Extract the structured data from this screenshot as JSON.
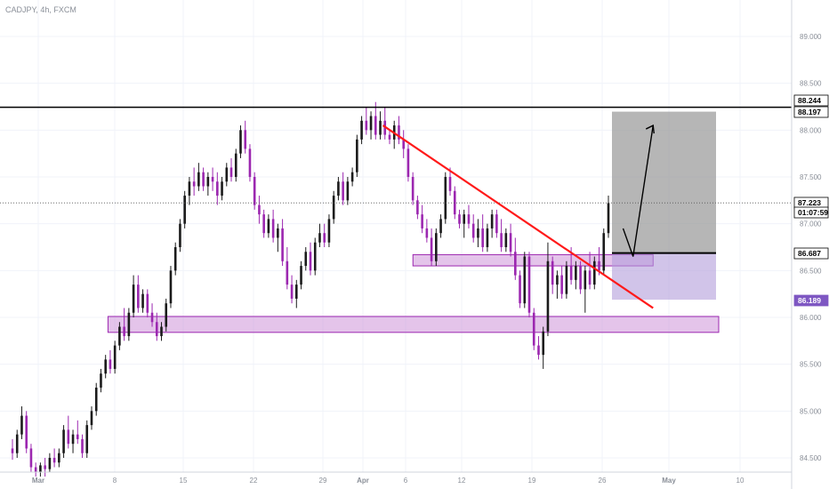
{
  "header": {
    "title": "CADJPY, 4h, FXCM"
  },
  "colors": {
    "bull": "#1b1b1b",
    "bear": "#9c27b0",
    "zone_fill": "#ce93d8",
    "zone_stroke": "#9c27b0",
    "trendline": "#ff1a1a",
    "target_fill": "#9e9e9e",
    "stop_fill": "#b39ddb",
    "level_line": "#000000",
    "current_price_tag": "#000000",
    "stop_tag": "#7e57c2"
  },
  "chart_data": {
    "type": "candlestick",
    "title": "CADJPY, 4h, FXCM",
    "x_tick_labels": [
      "Mar",
      "8",
      "15",
      "22",
      "29",
      "Apr",
      "6",
      "12",
      "19",
      "26",
      "May",
      "10"
    ],
    "y_tick_labels": [
      "84.500",
      "85.000",
      "85.500",
      "86.000",
      "86.500",
      "87.000",
      "87.500",
      "88.000",
      "88.500",
      "89.000"
    ],
    "ylim": [
      84.4,
      89.5
    ],
    "price_tags": [
      {
        "label": "88.244",
        "price": 88.244,
        "style": "outline"
      },
      {
        "label": "88.197",
        "price": 88.197,
        "style": "dark"
      },
      {
        "label": "87.223",
        "price": 87.223,
        "style": "dark"
      },
      {
        "label": "01:07:59",
        "price": 87.1,
        "style": "dark"
      },
      {
        "label": "86.687",
        "price": 86.687,
        "style": "outline"
      },
      {
        "label": "86.189",
        "price": 86.189,
        "style": "purple"
      }
    ],
    "horizontal_lines": [
      {
        "name": "resistance",
        "price": 88.244
      },
      {
        "name": "current-price",
        "price": 87.223,
        "style": "dotted"
      }
    ],
    "zones": [
      {
        "name": "support-zone-upper",
        "x_start": "Apr 6",
        "x_end": "Apr 30",
        "price_low": 86.55,
        "price_high": 86.67
      },
      {
        "name": "support-zone-lower",
        "x_start": "Mar 8",
        "x_end": "May 6",
        "price_low": 85.84,
        "price_high": 86.01
      }
    ],
    "trendline": {
      "from": {
        "x": "Apr 3",
        "price": 88.05
      },
      "to": {
        "x": "Apr 30",
        "price": 86.1
      }
    },
    "position": {
      "entry": 86.687,
      "target": 88.197,
      "stop": 86.189
    },
    "projection": {
      "points": [
        {
          "x": "Apr 27",
          "price": 86.95
        },
        {
          "x": "Apr 28",
          "price": 86.65
        },
        {
          "x": "Apr 30",
          "price": 88.05
        }
      ]
    },
    "candles": [
      [
        84.6,
        84.7,
        84.48,
        84.55
      ],
      [
        84.55,
        84.8,
        84.5,
        84.75
      ],
      [
        84.75,
        85.05,
        84.7,
        84.95
      ],
      [
        84.95,
        85.0,
        84.55,
        84.6
      ],
      [
        84.6,
        84.65,
        84.35,
        84.4
      ],
      [
        84.4,
        84.45,
        84.3,
        84.35
      ],
      [
        84.35,
        84.45,
        84.3,
        84.42
      ],
      [
        84.42,
        84.5,
        84.3,
        84.38
      ],
      [
        84.38,
        84.55,
        84.35,
        84.5
      ],
      [
        84.5,
        84.6,
        84.4,
        84.45
      ],
      [
        84.45,
        84.6,
        84.4,
        84.55
      ],
      [
        84.55,
        84.85,
        84.5,
        84.8
      ],
      [
        84.8,
        84.95,
        84.6,
        84.65
      ],
      [
        84.65,
        84.8,
        84.55,
        84.75
      ],
      [
        84.75,
        84.9,
        84.65,
        84.7
      ],
      [
        84.7,
        84.75,
        84.5,
        84.55
      ],
      [
        84.55,
        84.9,
        84.5,
        84.85
      ],
      [
        84.85,
        85.05,
        84.8,
        85.0
      ],
      [
        85.0,
        85.3,
        84.95,
        85.25
      ],
      [
        85.25,
        85.45,
        85.2,
        85.4
      ],
      [
        85.4,
        85.6,
        85.35,
        85.55
      ],
      [
        85.55,
        85.65,
        85.4,
        85.45
      ],
      [
        85.45,
        85.75,
        85.4,
        85.7
      ],
      [
        85.7,
        85.95,
        85.65,
        85.9
      ],
      [
        85.9,
        86.1,
        85.75,
        85.8
      ],
      [
        85.8,
        86.1,
        85.75,
        86.05
      ],
      [
        86.05,
        86.45,
        86.0,
        86.35
      ],
      [
        86.35,
        86.45,
        86.05,
        86.1
      ],
      [
        86.1,
        86.3,
        86.05,
        86.25
      ],
      [
        86.25,
        86.3,
        86.0,
        86.05
      ],
      [
        86.05,
        86.15,
        85.9,
        85.95
      ],
      [
        85.95,
        86.05,
        85.75,
        85.8
      ],
      [
        85.8,
        85.95,
        85.75,
        85.9
      ],
      [
        85.9,
        86.2,
        85.85,
        86.15
      ],
      [
        86.15,
        86.55,
        86.1,
        86.5
      ],
      [
        86.5,
        86.8,
        86.45,
        86.75
      ],
      [
        86.75,
        87.05,
        86.7,
        87.0
      ],
      [
        87.0,
        87.35,
        86.95,
        87.3
      ],
      [
        87.3,
        87.5,
        87.2,
        87.45
      ],
      [
        87.45,
        87.6,
        87.3,
        87.4
      ],
      [
        87.4,
        87.65,
        87.35,
        87.55
      ],
      [
        87.55,
        87.6,
        87.35,
        87.4
      ],
      [
        87.4,
        87.55,
        87.3,
        87.5
      ],
      [
        87.5,
        87.6,
        87.35,
        87.45
      ],
      [
        87.45,
        87.55,
        87.2,
        87.3
      ],
      [
        87.3,
        87.5,
        87.25,
        87.45
      ],
      [
        87.45,
        87.65,
        87.4,
        87.6
      ],
      [
        87.6,
        87.7,
        87.45,
        87.5
      ],
      [
        87.5,
        87.8,
        87.45,
        87.75
      ],
      [
        87.75,
        88.05,
        87.7,
        88.0
      ],
      [
        88.0,
        88.1,
        87.75,
        87.8
      ],
      [
        87.8,
        87.85,
        87.45,
        87.5
      ],
      [
        87.5,
        87.55,
        87.15,
        87.2
      ],
      [
        87.2,
        87.3,
        87.0,
        87.1
      ],
      [
        87.1,
        87.15,
        86.85,
        86.9
      ],
      [
        86.9,
        87.1,
        86.85,
        87.05
      ],
      [
        87.05,
        87.15,
        86.8,
        86.85
      ],
      [
        86.85,
        87.0,
        86.7,
        86.95
      ],
      [
        86.95,
        87.05,
        86.55,
        86.6
      ],
      [
        86.6,
        86.75,
        86.3,
        86.35
      ],
      [
        86.35,
        86.45,
        86.15,
        86.2
      ],
      [
        86.2,
        86.4,
        86.1,
        86.35
      ],
      [
        86.35,
        86.6,
        86.3,
        86.55
      ],
      [
        86.55,
        86.75,
        86.5,
        86.7
      ],
      [
        86.7,
        86.8,
        86.45,
        86.5
      ],
      [
        86.5,
        86.85,
        86.45,
        86.8
      ],
      [
        86.8,
        87.0,
        86.75,
        86.9
      ],
      [
        86.9,
        87.0,
        86.75,
        86.8
      ],
      [
        86.8,
        87.1,
        86.75,
        87.05
      ],
      [
        87.05,
        87.35,
        87.0,
        87.3
      ],
      [
        87.3,
        87.5,
        87.25,
        87.45
      ],
      [
        87.45,
        87.55,
        87.2,
        87.25
      ],
      [
        87.25,
        87.5,
        87.2,
        87.45
      ],
      [
        87.45,
        87.6,
        87.4,
        87.55
      ],
      [
        87.55,
        87.95,
        87.5,
        87.9
      ],
      [
        87.9,
        88.15,
        87.85,
        88.1
      ],
      [
        88.1,
        88.25,
        87.95,
        88.0
      ],
      [
        88.0,
        88.2,
        87.9,
        88.15
      ],
      [
        88.15,
        88.3,
        87.9,
        87.95
      ],
      [
        87.95,
        88.2,
        87.9,
        88.1
      ],
      [
        88.1,
        88.25,
        87.9,
        87.95
      ],
      [
        87.95,
        88.0,
        87.85,
        87.9
      ],
      [
        87.9,
        88.1,
        87.8,
        88.05
      ],
      [
        88.05,
        88.15,
        87.85,
        87.9
      ],
      [
        87.9,
        88.0,
        87.7,
        87.8
      ],
      [
        87.8,
        87.85,
        87.45,
        87.5
      ],
      [
        87.5,
        87.55,
        87.2,
        87.25
      ],
      [
        87.25,
        87.3,
        87.05,
        87.1
      ],
      [
        87.1,
        87.2,
        86.9,
        86.95
      ],
      [
        86.95,
        87.05,
        86.8,
        86.85
      ],
      [
        86.85,
        86.95,
        86.55,
        86.6
      ],
      [
        86.6,
        86.95,
        86.55,
        86.9
      ],
      [
        86.9,
        87.1,
        86.85,
        87.05
      ],
      [
        87.05,
        87.55,
        87.0,
        87.5
      ],
      [
        87.5,
        87.6,
        87.3,
        87.35
      ],
      [
        87.35,
        87.4,
        87.05,
        87.1
      ],
      [
        87.1,
        87.15,
        86.95,
        87.0
      ],
      [
        87.0,
        87.15,
        86.85,
        87.1
      ],
      [
        87.1,
        87.2,
        86.95,
        87.0
      ],
      [
        87.0,
        87.1,
        86.8,
        86.85
      ],
      [
        86.85,
        87.05,
        86.75,
        86.95
      ],
      [
        86.95,
        87.1,
        86.7,
        86.75
      ],
      [
        86.75,
        87.0,
        86.7,
        86.95
      ],
      [
        86.95,
        87.15,
        86.85,
        87.1
      ],
      [
        87.1,
        87.15,
        86.85,
        86.9
      ],
      [
        86.9,
        87.05,
        86.7,
        86.75
      ],
      [
        86.75,
        86.95,
        86.7,
        86.9
      ],
      [
        86.9,
        87.0,
        86.65,
        86.7
      ],
      [
        86.7,
        86.85,
        86.4,
        86.45
      ],
      [
        86.45,
        86.5,
        86.1,
        86.15
      ],
      [
        86.15,
        86.7,
        86.1,
        86.65
      ],
      [
        86.65,
        86.7,
        86.0,
        86.05
      ],
      [
        86.05,
        86.1,
        85.65,
        85.7
      ],
      [
        85.7,
        85.8,
        85.55,
        85.6
      ],
      [
        85.6,
        85.9,
        85.45,
        85.85
      ],
      [
        85.85,
        86.8,
        85.8,
        86.6
      ],
      [
        86.6,
        86.65,
        86.25,
        86.35
      ],
      [
        86.35,
        86.5,
        86.2,
        86.45
      ],
      [
        86.45,
        86.55,
        86.2,
        86.25
      ],
      [
        86.25,
        86.6,
        86.2,
        86.55
      ],
      [
        86.55,
        86.75,
        86.35,
        86.4
      ],
      [
        86.4,
        86.6,
        86.3,
        86.55
      ],
      [
        86.55,
        86.6,
        86.25,
        86.3
      ],
      [
        86.3,
        86.55,
        86.05,
        86.5
      ],
      [
        86.5,
        86.7,
        86.3,
        86.35
      ],
      [
        86.35,
        86.65,
        86.3,
        86.6
      ],
      [
        86.6,
        86.75,
        86.45,
        86.5
      ],
      [
        86.5,
        86.95,
        86.45,
        86.9
      ],
      [
        86.9,
        87.3,
        86.85,
        87.22
      ]
    ]
  }
}
